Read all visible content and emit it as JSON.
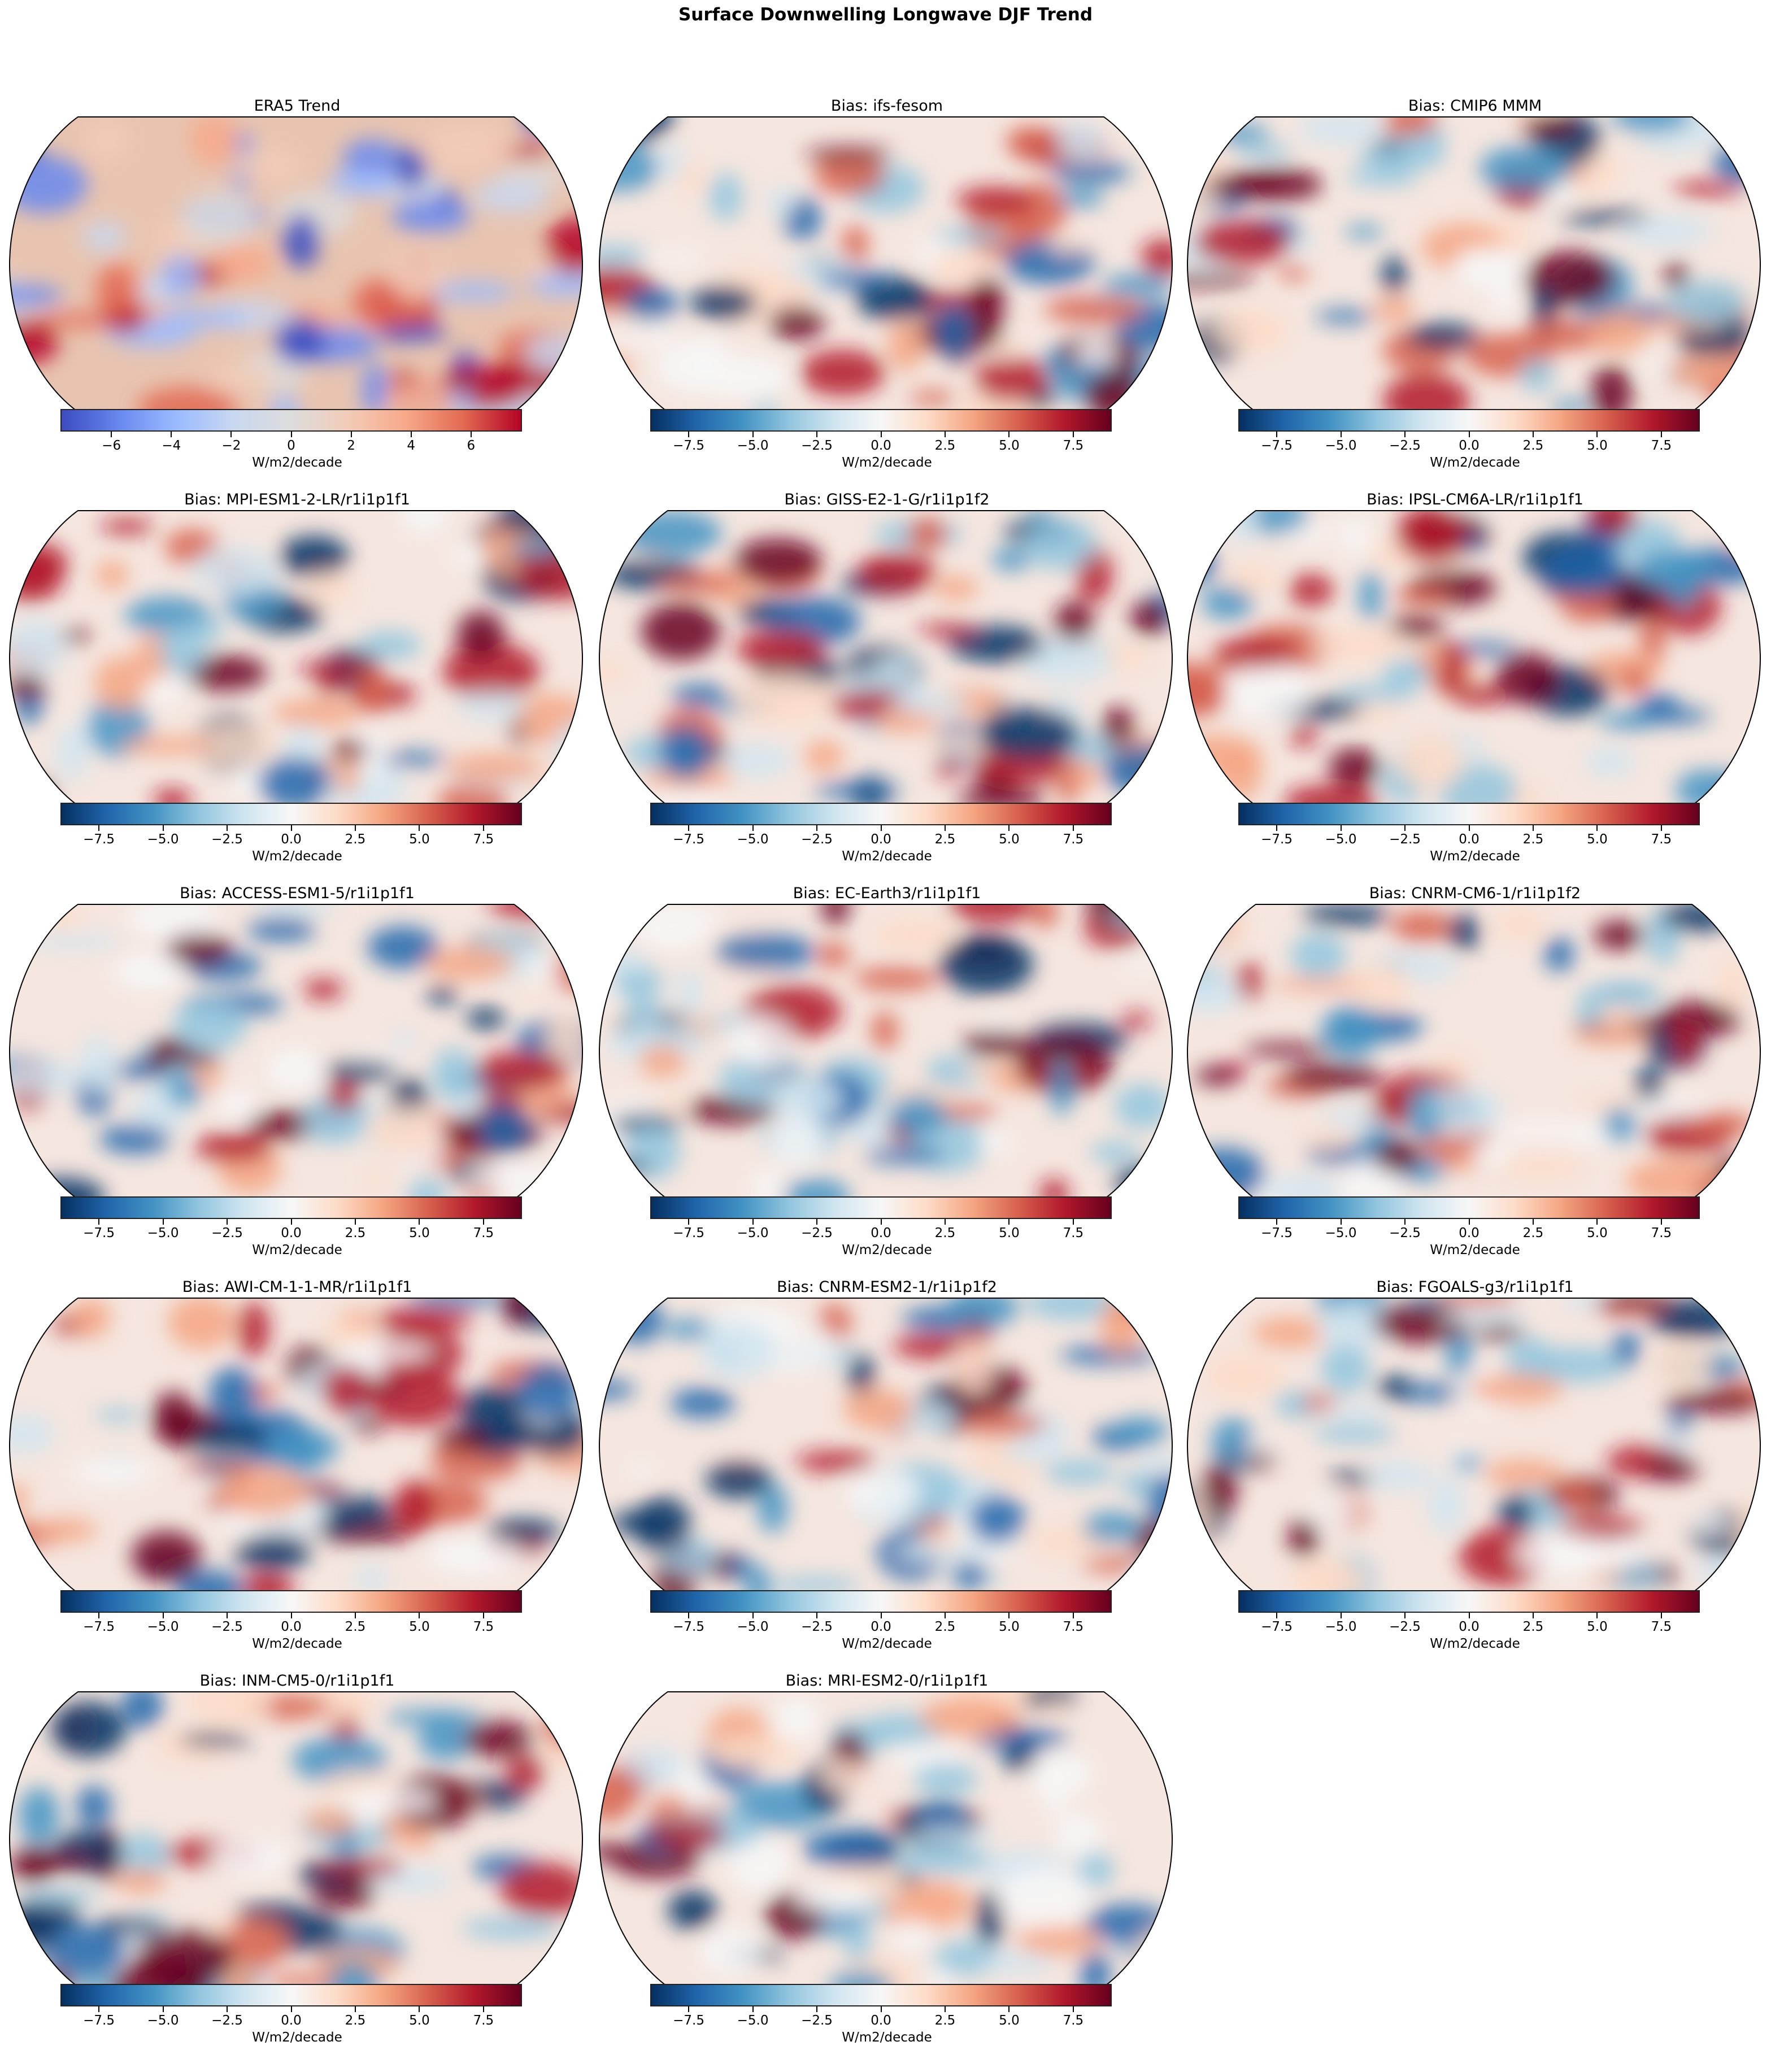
{
  "title": "Surface Downwelling Longwave DJF Trend",
  "chart_data": {
    "type": "heatmap",
    "title": "Surface Downwelling Longwave DJF Trend",
    "projection": "Robinson",
    "layout": "5 rows x 3 columns",
    "panels": [
      {
        "title": "ERA5 Trend",
        "colormap": "coolwarm",
        "clim": [
          -7.7,
          7.7
        ],
        "ticks": [
          "−6",
          "−4",
          "−2",
          "0",
          "2",
          "4",
          "6"
        ],
        "tick_values": [
          -6,
          -4,
          -2,
          0,
          2,
          4,
          6
        ],
        "colorbar_label": "W/m2/decade"
      },
      {
        "title": "Bias: ifs-fesom",
        "colormap": "RdBu_r",
        "clim": [
          -9,
          9
        ],
        "colorbar_label": "W/m2/decade"
      },
      {
        "title": "Bias: CMIP6 MMM",
        "colormap": "RdBu_r",
        "clim": [
          -9,
          9
        ],
        "colorbar_label": "W/m2/decade"
      },
      {
        "title": "Bias: MPI-ESM1-2-LR/r1i1p1f1",
        "colormap": "RdBu_r",
        "clim": [
          -9,
          9
        ],
        "colorbar_label": "W/m2/decade"
      },
      {
        "title": "Bias: GISS-E2-1-G/r1i1p1f2",
        "colormap": "RdBu_r",
        "clim": [
          -9,
          9
        ],
        "colorbar_label": "W/m2/decade"
      },
      {
        "title": "Bias: IPSL-CM6A-LR/r1i1p1f1",
        "colormap": "RdBu_r",
        "clim": [
          -9,
          9
        ],
        "colorbar_label": "W/m2/decade"
      },
      {
        "title": "Bias: ACCESS-ESM1-5/r1i1p1f1",
        "colormap": "RdBu_r",
        "clim": [
          -9,
          9
        ],
        "colorbar_label": "W/m2/decade"
      },
      {
        "title": "Bias: EC-Earth3/r1i1p1f1",
        "colormap": "RdBu_r",
        "clim": [
          -9,
          9
        ],
        "colorbar_label": "W/m2/decade"
      },
      {
        "title": "Bias: CNRM-CM6-1/r1i1p1f2",
        "colormap": "RdBu_r",
        "clim": [
          -9,
          9
        ],
        "colorbar_label": "W/m2/decade"
      },
      {
        "title": "Bias: AWI-CM-1-1-MR/r1i1p1f1",
        "colormap": "RdBu_r",
        "clim": [
          -9,
          9
        ],
        "colorbar_label": "W/m2/decade"
      },
      {
        "title": "Bias: CNRM-ESM2-1/r1i1p1f2",
        "colormap": "RdBu_r",
        "clim": [
          -9,
          9
        ],
        "colorbar_label": "W/m2/decade"
      },
      {
        "title": "Bias: FGOALS-g3/r1i1p1f1",
        "colormap": "RdBu_r",
        "clim": [
          -9,
          9
        ],
        "colorbar_label": "W/m2/decade"
      },
      {
        "title": "Bias: INM-CM5-0/r1i1p1f1",
        "colormap": "RdBu_r",
        "clim": [
          -9,
          9
        ],
        "colorbar_label": "W/m2/decade"
      },
      {
        "title": "Bias: MRI-ESM2-0/r1i1p1f1",
        "colormap": "RdBu_r",
        "clim": [
          -9,
          9
        ],
        "colorbar_label": "W/m2/decade"
      }
    ],
    "bias_ticks": [
      "−7.5",
      "−5.0",
      "−2.5",
      "0.0",
      "2.5",
      "5.0",
      "7.5"
    ],
    "bias_tick_values": [
      -7.5,
      -5,
      -2.5,
      0,
      2.5,
      5,
      7.5
    ]
  },
  "colormaps": {
    "coolwarm": [
      "#3b4cc0",
      "#6788ee",
      "#9abbff",
      "#c9d7f0",
      "#dddcdc",
      "#f2cbb7",
      "#f7a889",
      "#e26952",
      "#b40426"
    ],
    "RdBu_r": [
      "#053061",
      "#2166ac",
      "#4393c3",
      "#92c5de",
      "#d1e5f0",
      "#f7f7f7",
      "#fddbc7",
      "#f4a582",
      "#d6604d",
      "#b2182b",
      "#67001f"
    ]
  }
}
